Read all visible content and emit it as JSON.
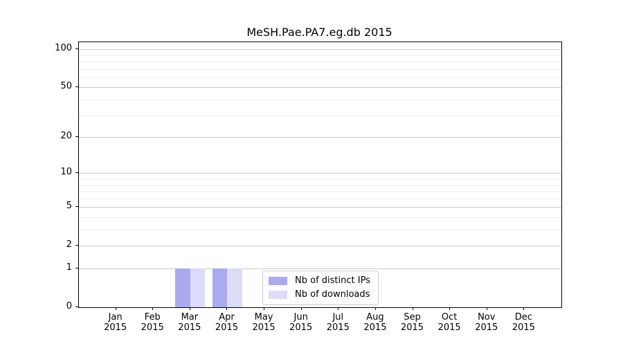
{
  "chart_data": {
    "type": "bar",
    "title": "MeSH.Pae.PA7.eg.db 2015",
    "categories": [
      "Jan",
      "Feb",
      "Mar",
      "Apr",
      "May",
      "Jun",
      "Jul",
      "Aug",
      "Sep",
      "Oct",
      "Nov",
      "Dec"
    ],
    "year_label": "2015",
    "series": [
      {
        "name": "Nb of distinct IPs",
        "color": "#aaaaf0",
        "values": [
          0,
          0,
          1,
          1,
          0,
          0,
          0,
          0,
          0,
          0,
          0,
          0
        ]
      },
      {
        "name": "Nb of downloads",
        "color": "#dcdcf8",
        "values": [
          0,
          0,
          1,
          1,
          0,
          0,
          0,
          0,
          0,
          0,
          0,
          0
        ]
      }
    ],
    "xlabel": "",
    "ylabel": "",
    "yscale": "log1p",
    "ylim": [
      0,
      113
    ],
    "yticks": [
      0,
      1,
      2,
      5,
      10,
      20,
      50,
      100
    ],
    "yticks_minor": [
      3,
      4,
      6,
      7,
      8,
      9,
      30,
      40,
      60,
      70,
      80,
      90
    ],
    "grid": true,
    "legend_position": "inside-bottom-center"
  },
  "colors": {
    "grid_major": "#c9c9c9",
    "grid_minor": "#ededed",
    "axis": "#000000",
    "background": "#ffffff",
    "bar_distinct_ips": "#aaaaf0",
    "bar_downloads": "#dcdcf8"
  }
}
